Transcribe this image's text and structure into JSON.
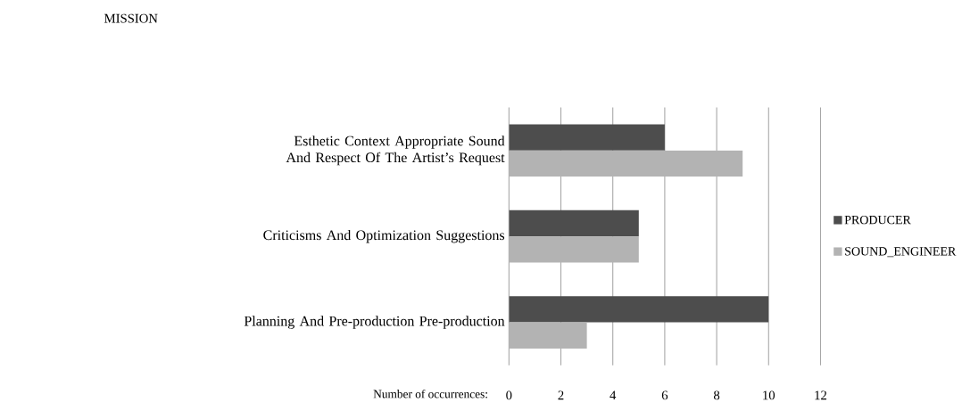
{
  "chart_data": {
    "type": "bar",
    "orientation": "horizontal",
    "title": "MISSION",
    "xlabel": "Number of occurrences:",
    "categories": [
      "Esthetic Context Appropriate Sound And Respect Of The Artist’s Request",
      "Criticisms And Optimization Suggestions",
      "Planning And Pre-production Pre-production"
    ],
    "series": [
      {
        "name": "PRODUCER",
        "color": "#4d4d4d",
        "values": [
          6,
          5,
          10
        ]
      },
      {
        "name": "SOUND_ENGINEER",
        "color": "#b3b3b3",
        "values": [
          9,
          5,
          3
        ]
      }
    ],
    "xlim": [
      0,
      12
    ],
    "xticks": [
      0,
      2,
      4,
      6,
      8,
      10,
      12
    ],
    "grid": "x",
    "legend": "right"
  }
}
